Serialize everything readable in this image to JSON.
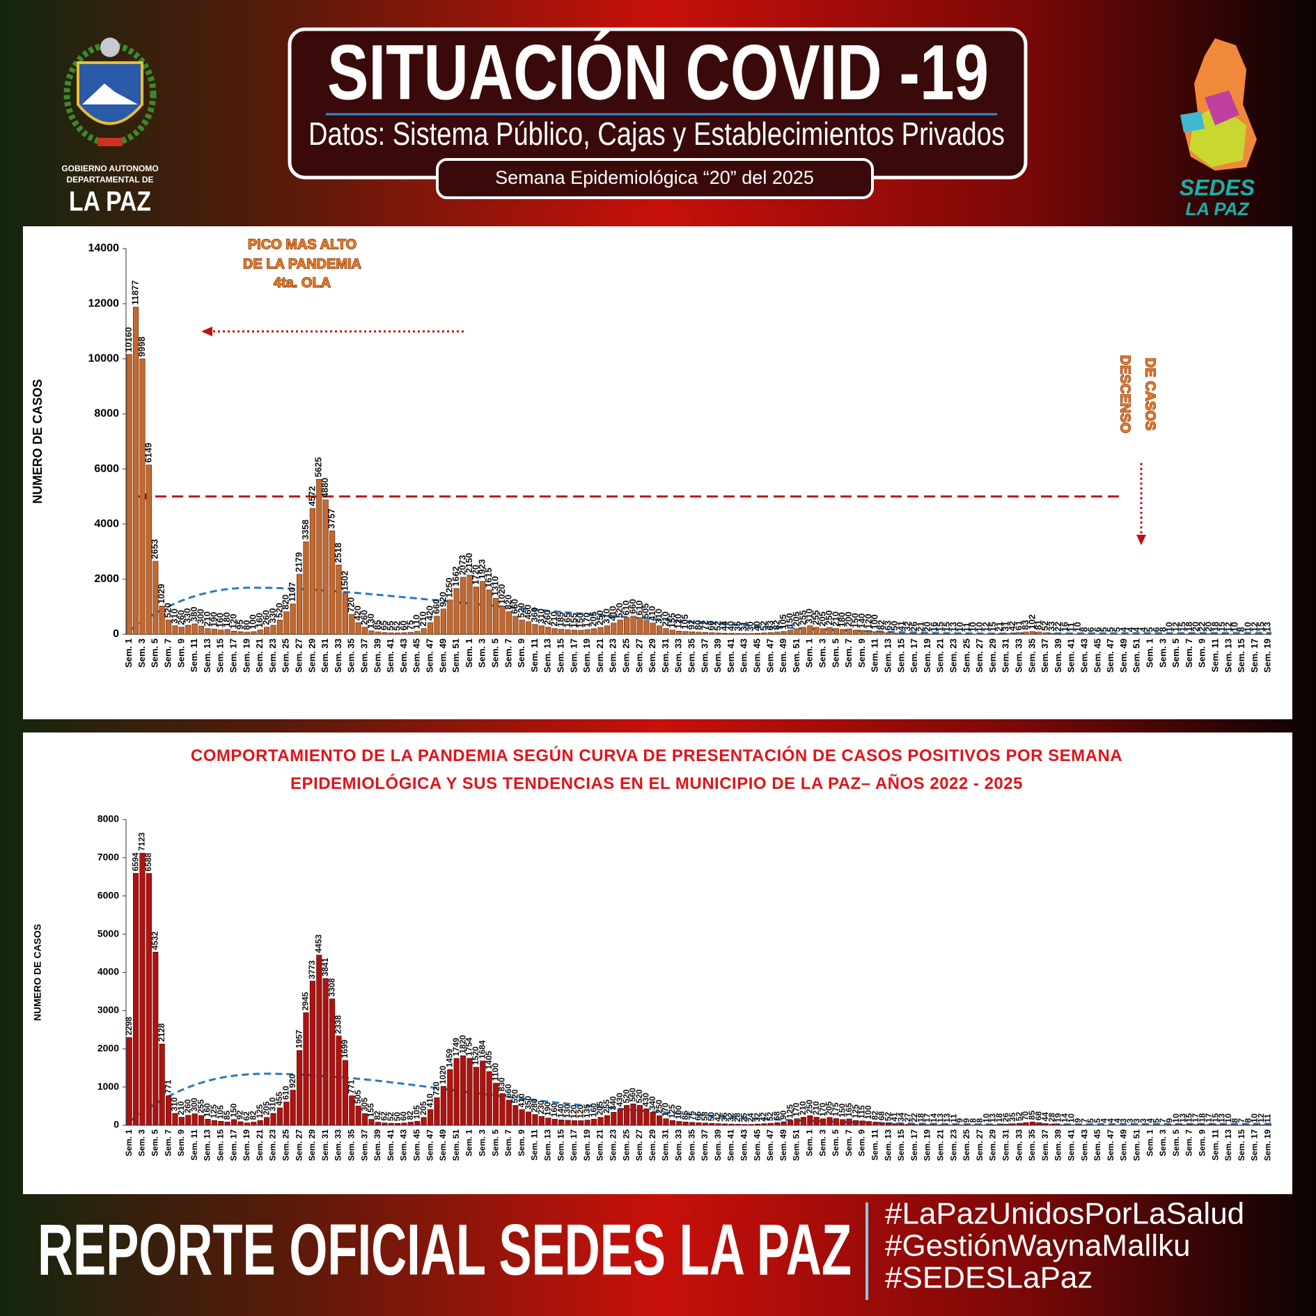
{
  "header": {
    "title": "SITUACIÓN COVID -19",
    "subtitle": "Datos: Sistema Público, Cajas y Establecimientos Privados",
    "week": "Semana  Epidemiológica “20” del  2025"
  },
  "logos": {
    "left": [
      "GOBIERNO AUTONOMO",
      "DEPARTAMENTAL DE",
      "LA PAZ"
    ],
    "right": [
      "SEDES",
      "LA PAZ"
    ]
  },
  "footer": {
    "title": "REPORTE OFICIAL SEDES LA PAZ",
    "hashtags": [
      "#LaPazUnidosPorLaSalud",
      "#GestiónWaynaMallku",
      "#SEDESLaPaz"
    ]
  },
  "chart_data": [
    {
      "type": "bar",
      "y_label": "NUMERO DE CASOS",
      "color": "#c4692e",
      "edge": "#4a1a05",
      "annotations": [
        "PICO MAS ALTO",
        "DE LA PANDEMIA",
        "4ta.  OLA",
        "DESCENSO",
        "DE CASOS"
      ],
      "ylim": [
        0,
        14000
      ],
      "yticks": [
        0,
        2000,
        4000,
        6000,
        8000,
        10000,
        12000,
        14000
      ],
      "categories": [
        "Sem. 1",
        null,
        "Sem. 3",
        null,
        "Sem. 5",
        null,
        "Sem. 7",
        null,
        "Sem. 9",
        null,
        "Sem. 11",
        null,
        "Sem. 13",
        null,
        "Sem. 15",
        null,
        "Sem. 17",
        null,
        "Sem. 19",
        null,
        "Sem. 21",
        null,
        "Sem. 23",
        null,
        "Sem. 25",
        null,
        "Sem. 27",
        null,
        "Sem. 29",
        null,
        "Sem. 31",
        null,
        "Sem. 33",
        null,
        "Sem. 35",
        null,
        "Sem. 37",
        null,
        "Sem. 39",
        null,
        "Sem. 41",
        null,
        "Sem. 43",
        null,
        "Sem. 45",
        null,
        "Sem. 47",
        null,
        "Sem. 49",
        null,
        "Sem. 51",
        null,
        "Sem. 1",
        null,
        "Sem. 3",
        null,
        "Sem. 5",
        null,
        "Sem. 7",
        null,
        "Sem. 9",
        null,
        "Sem. 11",
        null,
        "Sem. 13",
        null,
        "Sem. 15",
        null,
        "Sem. 17",
        null,
        "Sem. 19",
        null,
        "Sem. 21",
        null,
        "Sem. 23",
        null,
        "Sem. 25",
        null,
        "Sem. 27",
        null,
        "Sem. 29",
        null,
        "Sem. 31",
        null,
        "Sem. 33",
        null,
        "Sem. 35",
        null,
        "Sem. 37",
        null,
        "Sem. 39",
        null,
        "Sem. 41",
        null,
        "Sem. 43",
        null,
        "Sem. 45",
        null,
        "Sem. 47",
        null,
        "Sem. 49",
        null,
        "Sem. 51",
        null,
        "Sem. 1",
        null,
        "Sem. 3",
        null,
        "Sem. 5",
        null,
        "Sem. 7",
        null,
        "Sem. 9",
        null,
        "Sem. 11",
        null,
        "Sem. 13",
        null,
        "Sem. 15",
        null,
        "Sem. 17",
        null,
        "Sem. 19",
        null,
        "Sem. 21",
        null,
        "Sem. 23",
        null,
        "Sem. 25",
        null,
        "Sem. 27",
        null,
        "Sem. 29",
        null,
        "Sem. 31",
        null,
        "Sem. 33",
        null,
        "Sem. 35",
        null,
        "Sem. 37",
        null,
        "Sem. 39",
        null,
        "Sem. 41",
        null,
        "Sem. 43",
        null,
        "Sem. 45",
        null,
        "Sem. 47",
        null,
        "Sem. 49",
        null,
        "Sem. 51",
        null,
        "Sem. 1",
        null,
        "Sem. 3",
        null,
        "Sem. 5",
        null,
        "Sem. 7",
        null,
        "Sem. 9",
        null,
        "Sem. 11",
        null,
        "Sem. 13",
        null,
        "Sem. 15",
        null,
        "Sem. 17",
        null,
        "Sem. 19"
      ],
      "values": [
        10160,
        11877,
        9998,
        6149,
        2653,
        1029,
        520,
        310,
        260,
        330,
        380,
        300,
        210,
        190,
        160,
        180,
        120,
        95,
        80,
        100,
        160,
        260,
        330,
        520,
        820,
        1107,
        2179,
        3358,
        4572,
        5625,
        4880,
        3757,
        2518,
        1502,
        720,
        420,
        260,
        130,
        85,
        65,
        55,
        52,
        60,
        75,
        110,
        210,
        420,
        660,
        920,
        1250,
        1662,
        2073,
        2150,
        1720,
        1923,
        1615,
        1310,
        1020,
        820,
        660,
        520,
        460,
        360,
        310,
        260,
        210,
        185,
        165,
        155,
        150,
        170,
        205,
        250,
        310,
        410,
        520,
        610,
        660,
        610,
        505,
        410,
        310,
        210,
        155,
        120,
        105,
        92,
        80,
        72,
        60,
        52,
        44,
        40,
        35,
        31,
        30,
        40,
        52,
        63,
        82,
        105,
        150,
        205,
        255,
        310,
        255,
        205,
        250,
        210,
        180,
        200,
        150,
        140,
        120,
        100,
        82,
        63,
        50,
        41,
        32,
        26,
        21,
        20,
        16,
        15,
        15,
        13,
        10,
        11,
        10,
        10,
        12,
        15,
        21,
        31,
        42,
        61,
        83,
        102,
        81,
        52,
        33,
        22,
        16,
        11,
        10,
        8,
        6,
        6,
        5,
        5,
        5,
        4,
        4,
        4,
        4,
        5,
        6,
        8,
        10,
        12,
        15,
        18,
        20,
        22,
        20,
        18,
        15,
        12,
        10,
        8,
        10,
        12,
        15,
        13
      ]
    },
    {
      "type": "bar",
      "title": "COMPORTAMIENTO DE LA PANDEMIA SEGÚN CURVA DE PRESENTACIÓN DE CASOS POSITIVOS POR SEMANA EPIDEMIOLÓGICA Y SUS TENDENCIAS EN EL MUNICIPIO DE LA PAZ– AÑOS 2022 - 2025",
      "y_label": "NUMERO DE CASOS",
      "color": "#b0120f",
      "edge": "#3a0505",
      "ylim": [
        0,
        8000
      ],
      "yticks": [
        0,
        1000,
        2000,
        3000,
        4000,
        5000,
        6000,
        7000,
        8000
      ],
      "categories": [
        "Sem. 1",
        null,
        "Sem. 3",
        null,
        "Sem. 5",
        null,
        "Sem. 7",
        null,
        "Sem. 9",
        null,
        "Sem. 11",
        null,
        "Sem. 13",
        null,
        "Sem. 15",
        null,
        "Sem. 17",
        null,
        "Sem. 19",
        null,
        "Sem. 21",
        null,
        "Sem. 23",
        null,
        "Sem. 25",
        null,
        "Sem. 27",
        null,
        "Sem. 29",
        null,
        "Sem. 31",
        null,
        "Sem. 33",
        null,
        "Sem. 35",
        null,
        "Sem. 37",
        null,
        "Sem. 39",
        null,
        "Sem. 41",
        null,
        "Sem. 43",
        null,
        "Sem. 45",
        null,
        "Sem. 47",
        null,
        "Sem. 49",
        null,
        "Sem. 51",
        null,
        "Sem. 1",
        null,
        "Sem. 3",
        null,
        "Sem. 5",
        null,
        "Sem. 7",
        null,
        "Sem. 9",
        null,
        "Sem. 11",
        null,
        "Sem. 13",
        null,
        "Sem. 15",
        null,
        "Sem. 17",
        null,
        "Sem. 19",
        null,
        "Sem. 21",
        null,
        "Sem. 23",
        null,
        "Sem. 25",
        null,
        "Sem. 27",
        null,
        "Sem. 29",
        null,
        "Sem. 31",
        null,
        "Sem. 33",
        null,
        "Sem. 35",
        null,
        "Sem. 37",
        null,
        "Sem. 39",
        null,
        "Sem. 41",
        null,
        "Sem. 43",
        null,
        "Sem. 45",
        null,
        "Sem. 47",
        null,
        "Sem. 49",
        null,
        "Sem. 51",
        null,
        "Sem. 1",
        null,
        "Sem. 3",
        null,
        "Sem. 5",
        null,
        "Sem. 7",
        null,
        "Sem. 9",
        null,
        "Sem. 11",
        null,
        "Sem. 13",
        null,
        "Sem. 15",
        null,
        "Sem. 17",
        null,
        "Sem. 19",
        null,
        "Sem. 21",
        null,
        "Sem. 23",
        null,
        "Sem. 25",
        null,
        "Sem. 27",
        null,
        "Sem. 29",
        null,
        "Sem. 31",
        null,
        "Sem. 33",
        null,
        "Sem. 35",
        null,
        "Sem. 37",
        null,
        "Sem. 39",
        null,
        "Sem. 41",
        null,
        "Sem. 43",
        null,
        "Sem. 45",
        null,
        "Sem. 47",
        null,
        "Sem. 49",
        null,
        "Sem. 51",
        null,
        "Sem. 1",
        null,
        "Sem. 3",
        null,
        "Sem. 5",
        null,
        "Sem. 7",
        null,
        "Sem. 9",
        null,
        "Sem. 11",
        null,
        "Sem. 13",
        null,
        "Sem. 15",
        null,
        "Sem. 17",
        null,
        "Sem. 19"
      ],
      "values": [
        2298,
        6594,
        7123,
        6588,
        4532,
        2128,
        771,
        310,
        210,
        260,
        300,
        255,
        160,
        125,
        105,
        85,
        150,
        92,
        62,
        82,
        125,
        205,
        310,
        455,
        610,
        920,
        1957,
        2945,
        3773,
        4453,
        3841,
        3308,
        2338,
        1699,
        771,
        505,
        305,
        155,
        82,
        62,
        52,
        50,
        60,
        82,
        105,
        205,
        410,
        720,
        1020,
        1459,
        1749,
        1820,
        1754,
        1520,
        1684,
        1405,
        1100,
        830,
        660,
        520,
        410,
        350,
        280,
        230,
        190,
        160,
        140,
        130,
        120,
        120,
        135,
        160,
        205,
        255,
        340,
        430,
        520,
        560,
        520,
        430,
        340,
        250,
        170,
        125,
        100,
        85,
        75,
        65,
        58,
        50,
        42,
        36,
        32,
        28,
        25,
        24,
        32,
        42,
        52,
        68,
        90,
        125,
        170,
        210,
        250,
        210,
        170,
        205,
        175,
        150,
        165,
        125,
        115,
        100,
        82,
        68,
        52,
        41,
        34,
        27,
        22,
        18,
        17,
        14,
        13,
        13,
        11,
        9,
        9,
        8,
        8,
        10,
        13,
        18,
        26,
        35,
        52,
        70,
        85,
        68,
        44,
        28,
        19,
        14,
        10,
        9,
        7,
        5,
        5,
        4,
        4,
        4,
        3,
        3,
        3,
        3,
        4,
        5,
        7,
        9,
        10,
        13,
        15,
        17,
        18,
        17,
        15,
        13,
        10,
        8,
        7,
        8,
        10,
        12,
        11
      ]
    }
  ]
}
